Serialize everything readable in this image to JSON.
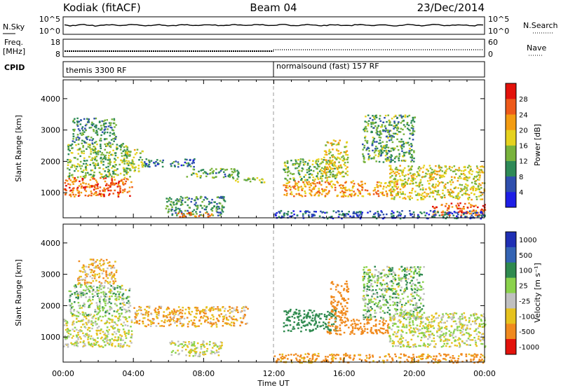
{
  "header": {
    "station": "Kodiak (fitACF)",
    "beam": "Beam 04",
    "date": "23/Dec/2014"
  },
  "noise_panel": {
    "left_label": "N.Sky",
    "left_top_tick": "10^5",
    "left_bottom_tick": "10^0",
    "right_label": "N.Search",
    "right_top_tick": "10^5",
    "right_bottom_tick": "10^0"
  },
  "freq_panel": {
    "left_label_line1": "Freq.",
    "left_label_line2": "[MHz]",
    "left_top_tick": "18",
    "left_bottom_tick": "8",
    "right_label": "Nave",
    "right_top_tick": "60",
    "right_bottom_tick": "0"
  },
  "cpid_panel": {
    "label": "CPID",
    "segments": [
      {
        "text": "themis 3300 RF",
        "start_hour": 0
      },
      {
        "text": "normalsound (fast) 157 RF",
        "start_hour": 12
      }
    ]
  },
  "chart_data": [
    {
      "type": "heatmap",
      "name": "power",
      "ylabel": "Slant Range [km]",
      "xlabel": "Time UT",
      "xlim": [
        0,
        24
      ],
      "ylim": [
        200,
        4600
      ],
      "y_ticks": [
        1000,
        2000,
        3000,
        4000
      ],
      "x_tick_labels": [
        "00:00",
        "04:00",
        "08:00",
        "12:00",
        "16:00",
        "20:00",
        "00:00"
      ],
      "colorbar": {
        "label": "Power [dB]",
        "ticks": [
          "4",
          "8",
          "12",
          "16",
          "20",
          "24",
          "28"
        ],
        "colors": [
          "#1e1ee6",
          "#2f4fae",
          "#2e8a57",
          "#79b33c",
          "#e6d21e",
          "#f39c12",
          "#ee5a1a",
          "#e3120b"
        ]
      },
      "scatter_regions": [
        {
          "t": [
            0.0,
            3.9
          ],
          "r": [
            900,
            1500
          ],
          "value": 25
        },
        {
          "t": [
            0.2,
            3.8
          ],
          "r": [
            1500,
            2600
          ],
          "value": 14
        },
        {
          "t": [
            0.5,
            3.0
          ],
          "r": [
            2600,
            3400
          ],
          "value": 10
        },
        {
          "t": [
            3.5,
            4.5
          ],
          "r": [
            1700,
            2400
          ],
          "value": 16
        },
        {
          "t": [
            4.5,
            7.5
          ],
          "r": [
            1850,
            2100
          ],
          "value": 8
        },
        {
          "t": [
            7.0,
            10.0
          ],
          "r": [
            1500,
            1800
          ],
          "value": 12
        },
        {
          "t": [
            9.5,
            11.5
          ],
          "r": [
            1350,
            1500
          ],
          "value": 14
        },
        {
          "t": [
            5.8,
            9.2
          ],
          "r": [
            300,
            900
          ],
          "value": 10
        },
        {
          "t": [
            6.5,
            8.5
          ],
          "r": [
            250,
            400
          ],
          "value": 26
        },
        {
          "t": [
            12.5,
            19.0
          ],
          "r": [
            900,
            1400
          ],
          "value": 22
        },
        {
          "t": [
            12.5,
            15.5
          ],
          "r": [
            1400,
            2100
          ],
          "value": 14
        },
        {
          "t": [
            14.8,
            16.2
          ],
          "r": [
            1500,
            2700
          ],
          "value": 18
        },
        {
          "t": [
            17.0,
            20.0
          ],
          "r": [
            2000,
            3500
          ],
          "value": 12
        },
        {
          "t": [
            18.5,
            24.0
          ],
          "r": [
            800,
            1900
          ],
          "value": 18
        },
        {
          "t": [
            21.0,
            24.0
          ],
          "r": [
            300,
            700
          ],
          "value": 26
        },
        {
          "t": [
            12.0,
            24.0
          ],
          "r": [
            200,
            450
          ],
          "value": 6
        }
      ]
    },
    {
      "type": "heatmap",
      "name": "velocity",
      "ylabel": "Slant Range [km]",
      "xlabel": "Time UT",
      "xlim": [
        0,
        24
      ],
      "ylim": [
        200,
        4600
      ],
      "y_ticks": [
        1000,
        2000,
        3000,
        4000
      ],
      "x_tick_labels": [
        "00:00",
        "04:00",
        "08:00",
        "12:00",
        "16:00",
        "20:00",
        "00:00"
      ],
      "colorbar": {
        "label": "Velocity [m s⁻¹]",
        "ticks": [
          "1000",
          "500",
          "100",
          "25",
          "-25",
          "-100",
          "-500",
          "-1000"
        ],
        "colors": [
          "#1f2fb4",
          "#3464b4",
          "#2f8a4f",
          "#8bd24c",
          "#c0c0c0",
          "#e6c21e",
          "#f08a1e",
          "#e3120b"
        ]
      },
      "scatter_regions": [
        {
          "t": [
            0.0,
            3.9
          ],
          "r": [
            700,
            1700
          ],
          "value": 0
        },
        {
          "t": [
            0.3,
            3.8
          ],
          "r": [
            1700,
            2700
          ],
          "value": 60
        },
        {
          "t": [
            0.8,
            3.0
          ],
          "r": [
            2700,
            3500
          ],
          "value": -80
        },
        {
          "t": [
            4.0,
            10.5
          ],
          "r": [
            1350,
            2000
          ],
          "value": -100
        },
        {
          "t": [
            6.0,
            9.0
          ],
          "r": [
            400,
            900
          ],
          "value": 0
        },
        {
          "t": [
            12.5,
            15.5
          ],
          "r": [
            1200,
            1900
          ],
          "value": 300
        },
        {
          "t": [
            15.0,
            18.5
          ],
          "r": [
            1100,
            1600
          ],
          "value": -400
        },
        {
          "t": [
            15.2,
            16.2
          ],
          "r": [
            1600,
            2800
          ],
          "value": -300
        },
        {
          "t": [
            17.0,
            20.5
          ],
          "r": [
            1600,
            3300
          ],
          "value": 60
        },
        {
          "t": [
            18.5,
            24.0
          ],
          "r": [
            700,
            1800
          ],
          "value": 0
        },
        {
          "t": [
            12.0,
            24.0
          ],
          "r": [
            200,
            500
          ],
          "value": -150
        }
      ]
    }
  ]
}
